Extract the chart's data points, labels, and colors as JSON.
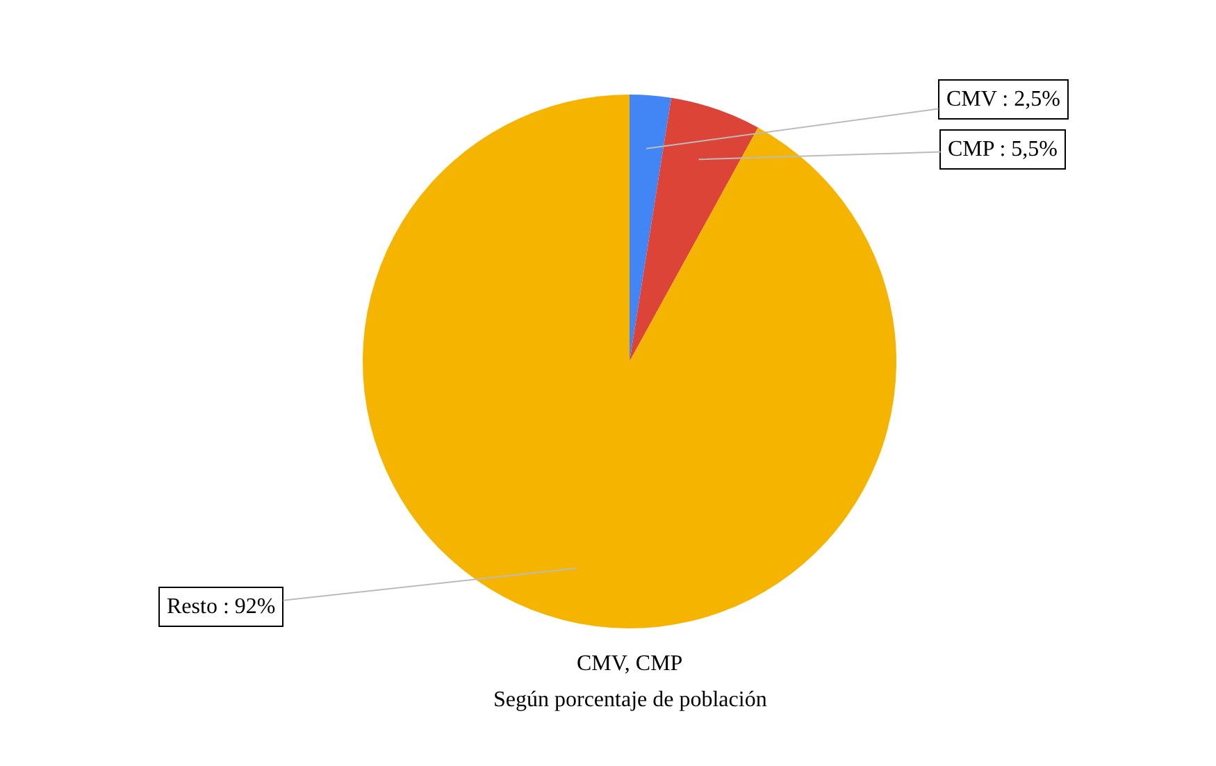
{
  "chart_data": {
    "type": "pie",
    "title": "CMV, CMP",
    "subtitle": "Según porcentaje de población",
    "categories": [
      "CMV",
      "CMP",
      "Resto"
    ],
    "values": [
      2.5,
      5.5,
      92
    ],
    "colors": [
      "#4285f4",
      "#db4437",
      "#f4b400"
    ],
    "value_labels": [
      "2,5%",
      "5,5%",
      "92%"
    ],
    "legend": false
  }
}
